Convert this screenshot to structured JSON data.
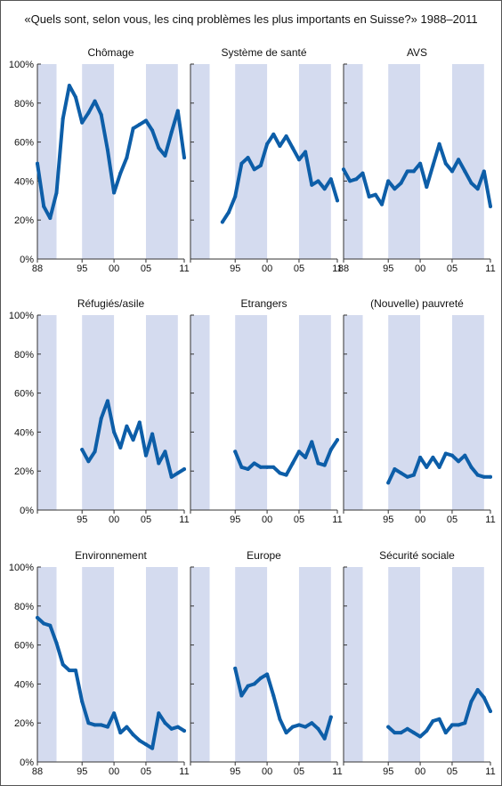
{
  "title": "«Quels sont, selon vous, les cinq problèmes les plus importants en Suisse?» 1988–2011",
  "colors": {
    "line": "#0d5ea8",
    "band": "#d4dbef",
    "axis": "#333333"
  },
  "y_ticks": [
    "0%",
    "20%",
    "40%",
    "60%",
    "80%",
    "100%"
  ],
  "x_ticks": [
    "88",
    "95",
    "00",
    "05",
    "11"
  ],
  "chart_data": [
    {
      "type": "line",
      "title": "Chômage",
      "ylim": [
        0,
        100
      ],
      "xlim": [
        1988,
        2011
      ],
      "x": [
        1988,
        1989,
        1990,
        1991,
        1992,
        1993,
        1994,
        1995,
        1996,
        1997,
        1998,
        1999,
        2000,
        2001,
        2002,
        2003,
        2004,
        2005,
        2006,
        2007,
        2008,
        2009,
        2010,
        2011
      ],
      "y": [
        49,
        27,
        21,
        34,
        72,
        89,
        83,
        70,
        75,
        81,
        74,
        56,
        34,
        44,
        52,
        67,
        69,
        71,
        66,
        57,
        53,
        65,
        76,
        52
      ]
    },
    {
      "type": "line",
      "title": "Système de santé",
      "ylim": [
        0,
        100
      ],
      "xlim": [
        1988,
        2011
      ],
      "x": [
        1993,
        1994,
        1995,
        1996,
        1997,
        1998,
        1999,
        2000,
        2001,
        2002,
        2003,
        2004,
        2005,
        2006,
        2007,
        2008,
        2009,
        2010,
        2011
      ],
      "y": [
        19,
        24,
        32,
        49,
        52,
        46,
        48,
        59,
        64,
        58,
        63,
        57,
        51,
        55,
        38,
        40,
        36,
        41,
        30
      ]
    },
    {
      "type": "line",
      "title": "AVS",
      "ylim": [
        0,
        100
      ],
      "xlim": [
        1988,
        2011
      ],
      "x": [
        1988,
        1989,
        1990,
        1991,
        1992,
        1993,
        1994,
        1995,
        1996,
        1997,
        1998,
        1999,
        2000,
        2001,
        2002,
        2003,
        2004,
        2005,
        2006,
        2007,
        2008,
        2009,
        2010,
        2011
      ],
      "y": [
        46,
        40,
        41,
        44,
        32,
        33,
        28,
        40,
        36,
        39,
        45,
        45,
        49,
        37,
        48,
        59,
        49,
        45,
        51,
        45,
        39,
        36,
        45,
        27
      ]
    },
    {
      "type": "line",
      "title": "Réfugiés/asile",
      "ylim": [
        0,
        100
      ],
      "xlim": [
        1988,
        2011
      ],
      "x": [
        1995,
        1996,
        1997,
        1998,
        1999,
        2000,
        2001,
        2002,
        2003,
        2004,
        2005,
        2006,
        2007,
        2008,
        2009,
        2010,
        2011
      ],
      "y": [
        31,
        25,
        30,
        47,
        56,
        40,
        32,
        43,
        36,
        45,
        28,
        39,
        24,
        30,
        17,
        19,
        21
      ]
    },
    {
      "type": "line",
      "title": "Etrangers",
      "ylim": [
        0,
        100
      ],
      "xlim": [
        1988,
        2011
      ],
      "x": [
        1995,
        1996,
        1997,
        1998,
        1999,
        2000,
        2001,
        2002,
        2003,
        2004,
        2005,
        2006,
        2007,
        2008,
        2009,
        2010,
        2011
      ],
      "y": [
        30,
        22,
        21,
        24,
        22,
        22,
        22,
        19,
        18,
        24,
        30,
        27,
        35,
        24,
        23,
        31,
        36
      ]
    },
    {
      "type": "line",
      "title": "(Nouvelle) pauvreté",
      "ylim": [
        0,
        100
      ],
      "xlim": [
        1988,
        2011
      ],
      "x": [
        1995,
        1996,
        1997,
        1998,
        1999,
        2000,
        2001,
        2002,
        2003,
        2004,
        2005,
        2006,
        2007,
        2008,
        2009,
        2010,
        2011
      ],
      "y": [
        14,
        21,
        19,
        17,
        18,
        27,
        22,
        27,
        22,
        29,
        28,
        25,
        28,
        22,
        18,
        17,
        17
      ]
    },
    {
      "type": "line",
      "title": "Environnement",
      "ylim": [
        0,
        100
      ],
      "xlim": [
        1988,
        2011
      ],
      "x": [
        1988,
        1989,
        1990,
        1991,
        1992,
        1993,
        1994,
        1995,
        1996,
        1997,
        1998,
        1999,
        2000,
        2001,
        2002,
        2003,
        2004,
        2005,
        2006,
        2007,
        2008,
        2009,
        2010,
        2011
      ],
      "y": [
        74,
        71,
        70,
        61,
        50,
        47,
        47,
        31,
        20,
        19,
        19,
        18,
        25,
        15,
        18,
        14,
        11,
        9,
        7,
        25,
        20,
        17,
        18,
        16
      ]
    },
    {
      "type": "line",
      "title": "Europe",
      "ylim": [
        0,
        100
      ],
      "xlim": [
        1988,
        2011
      ],
      "x": [
        1995,
        1996,
        1997,
        1998,
        1999,
        2000,
        2001,
        2002,
        2003,
        2004,
        2005,
        2006,
        2007,
        2008,
        2009,
        2010
      ],
      "y": [
        48,
        34,
        39,
        40,
        43,
        45,
        34,
        22,
        15,
        18,
        19,
        18,
        20,
        17,
        12,
        23
      ]
    },
    {
      "type": "line",
      "title": "Sécurité sociale",
      "ylim": [
        0,
        100
      ],
      "xlim": [
        1988,
        2011
      ],
      "x": [
        1995,
        1996,
        1997,
        1998,
        1999,
        2000,
        2001,
        2002,
        2003,
        2004,
        2005,
        2006,
        2007,
        2008,
        2009,
        2010,
        2011
      ],
      "y": [
        18,
        15,
        15,
        17,
        15,
        13,
        16,
        21,
        22,
        15,
        19,
        19,
        20,
        31,
        37,
        33,
        26
      ]
    }
  ]
}
